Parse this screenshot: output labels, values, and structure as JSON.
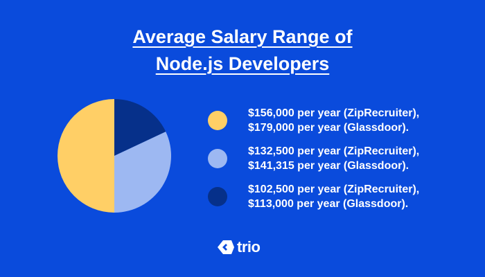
{
  "chart_data": {
    "type": "pie",
    "title_lines": [
      "Average Salary Range of",
      "Node.js Developers"
    ],
    "series": [
      {
        "name": "slice-1",
        "value": 50,
        "color": "#ffcf66",
        "lines": [
          "$156,000 per year (ZipRecruiter),",
          "$179,000 per year (Glassdoor)."
        ]
      },
      {
        "name": "slice-2",
        "value": 32,
        "color": "#9db8f2",
        "lines": [
          "$132,500 per year (ZipRecruiter),",
          "$141,315 per year (Glassdoor)."
        ]
      },
      {
        "name": "slice-3",
        "value": 18,
        "color": "#06308a",
        "lines": [
          "$102,500 per year (ZipRecruiter),",
          "$113,000 per year (Glassdoor)."
        ]
      }
    ],
    "legend_position": "right"
  },
  "brand": {
    "name": "trio",
    "logo_icon": "trio-logo-icon"
  }
}
